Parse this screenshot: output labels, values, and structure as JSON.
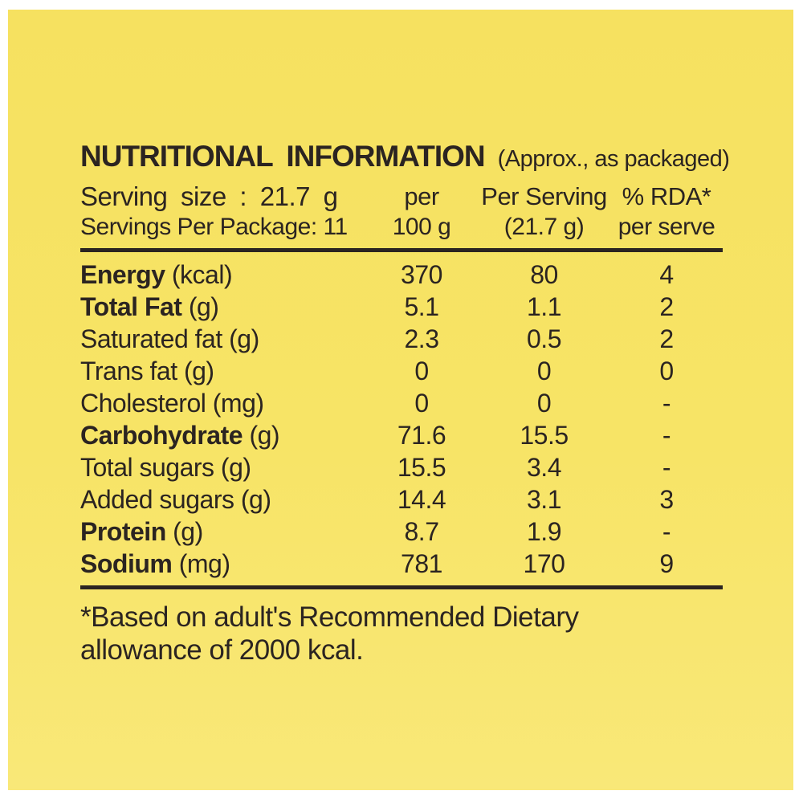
{
  "panel": {
    "title": "NUTRITIONAL INFORMATION",
    "title_suffix": "(Approx., as packaged)",
    "serving_size_label": "Serving size : 21.7 g",
    "servings_per_package": "Servings Per Package: 11",
    "columns": {
      "per100_line1": "per",
      "per100_line2": "100 g",
      "per_serving_line1": "Per Serving",
      "per_serving_line2": "(21.7 g)",
      "rda_line1": "% RDA*",
      "rda_line2": "per serve"
    },
    "rows": [
      {
        "label": "Energy",
        "unit": "(kcal)",
        "bold": true,
        "per100": "370",
        "perServing": "80",
        "rda": "4"
      },
      {
        "label": "Total Fat",
        "unit": "(g)",
        "bold": true,
        "per100": "5.1",
        "perServing": "1.1",
        "rda": "2"
      },
      {
        "label": "Saturated fat",
        "unit": "(g)",
        "bold": false,
        "per100": "2.3",
        "perServing": "0.5",
        "rda": "2"
      },
      {
        "label": "Trans fat",
        "unit": "(g)",
        "bold": false,
        "per100": "0",
        "perServing": "0",
        "rda": "0"
      },
      {
        "label": "Cholesterol",
        "unit": "(mg)",
        "bold": false,
        "per100": "0",
        "perServing": "0",
        "rda": "-"
      },
      {
        "label": "Carbohydrate",
        "unit": "(g)",
        "bold": true,
        "per100": "71.6",
        "perServing": "15.5",
        "rda": "-"
      },
      {
        "label": "Total sugars",
        "unit": "(g)",
        "bold": false,
        "per100": "15.5",
        "perServing": "3.4",
        "rda": "-"
      },
      {
        "label": "Added sugars",
        "unit": "(g)",
        "bold": false,
        "per100": "14.4",
        "perServing": "3.1",
        "rda": "3"
      },
      {
        "label": "Protein",
        "unit": "(g)",
        "bold": true,
        "per100": "8.7",
        "perServing": "1.9",
        "rda": "-"
      },
      {
        "label": "Sodium",
        "unit": "(mg)",
        "bold": true,
        "per100": "781",
        "perServing": "170",
        "rda": "9"
      }
    ],
    "footnote_line1": "*Based on adult's Recommended Dietary",
    "footnote_line2": "allowance of 2000 kcal.",
    "colors": {
      "page_background": "#ffffff",
      "label_background": "#f7e466",
      "ink": "#2b2421"
    }
  }
}
